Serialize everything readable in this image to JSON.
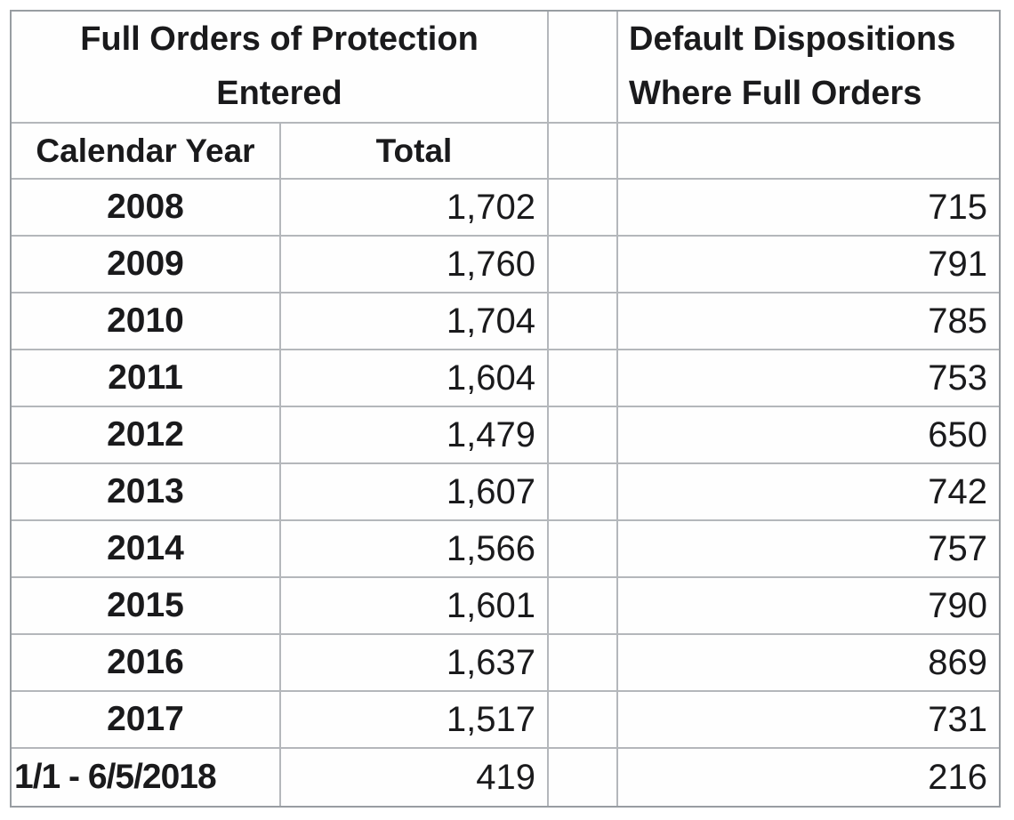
{
  "table": {
    "left_header": {
      "line1": "Full Orders of Protection",
      "line2": "Entered"
    },
    "right_header": {
      "line1": "Default Dispositions",
      "line2": "Where Full Orders"
    },
    "columns": {
      "year": "Calendar Year",
      "total": "Total"
    },
    "rows": [
      {
        "year": "2008",
        "total": "1,702",
        "default": "715"
      },
      {
        "year": "2009",
        "total": "1,760",
        "default": "791"
      },
      {
        "year": "2010",
        "total": "1,704",
        "default": "785"
      },
      {
        "year": "2011",
        "total": "1,604",
        "default": "753"
      },
      {
        "year": "2012",
        "total": "1,479",
        "default": "650"
      },
      {
        "year": "2013",
        "total": "1,607",
        "default": "742"
      },
      {
        "year": "2014",
        "total": "1,566",
        "default": "757"
      },
      {
        "year": "2015",
        "total": "1,601",
        "default": "790"
      },
      {
        "year": "2016",
        "total": "1,637",
        "default": "869"
      },
      {
        "year": "2017",
        "total": "1,517",
        "default": "731"
      },
      {
        "year": "1/1 - 6/5/2018",
        "total": "419",
        "default": "216"
      }
    ]
  },
  "colors": {
    "background": "#ffffff",
    "border_outer": "#989da2",
    "border_inner": "#b4b7bb",
    "text": "#1a1a1c"
  },
  "chart_data": {
    "type": "table",
    "title": "Full Orders of Protection Entered vs. Default Dispositions Where Full Orders",
    "categories": [
      "2008",
      "2009",
      "2010",
      "2011",
      "2012",
      "2013",
      "2014",
      "2015",
      "2016",
      "2017",
      "1/1 - 6/5/2018"
    ],
    "series": [
      {
        "name": "Full Orders of Protection Entered - Total",
        "values": [
          1702,
          1760,
          1704,
          1604,
          1479,
          1607,
          1566,
          1601,
          1637,
          1517,
          419
        ]
      },
      {
        "name": "Default Dispositions Where Full Orders",
        "values": [
          715,
          791,
          785,
          753,
          650,
          742,
          757,
          790,
          869,
          731,
          216
        ]
      }
    ],
    "layout": {
      "grid": true,
      "legend_position": "none"
    }
  }
}
